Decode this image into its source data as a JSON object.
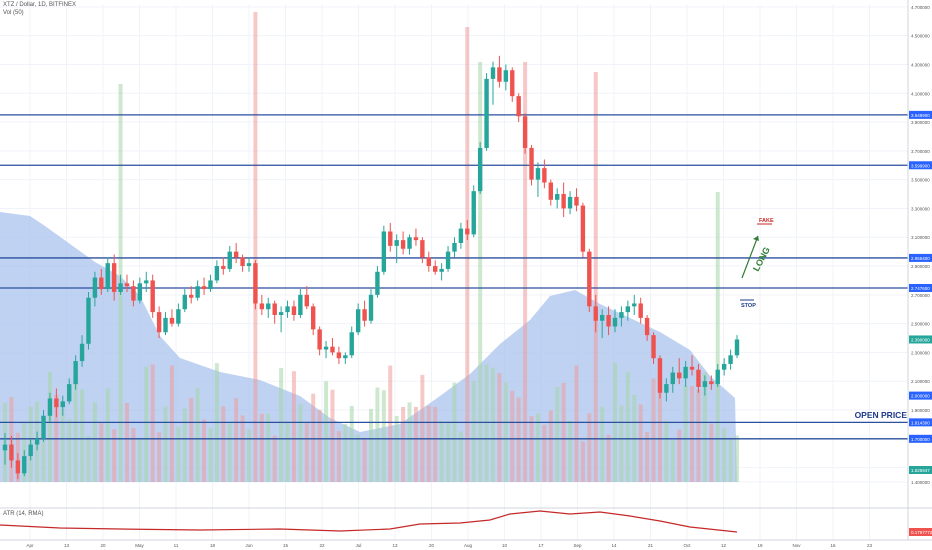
{
  "header": {
    "symbol_line": "XTZ / Dollar, 1D, BITFINEX",
    "volume_line": "Vol (50)",
    "atr_line": "ATR (14, RMA)"
  },
  "colors": {
    "up": "#26a69a",
    "down": "#ef5350",
    "level_line": "#2a4f9e",
    "volume_profile": "#a9c3ee",
    "atr": "#c62828",
    "label_bg": "#2962ff",
    "annotation_green": "#2e7d32",
    "annotation_blue": "#1e3a8a"
  },
  "annotations": {
    "fake": "FAKE",
    "long": "LONG",
    "stop": "STOP",
    "open_price": "OPEN PRICE"
  },
  "price_axis": {
    "ticks": [
      "4.700000",
      "4.500000",
      "4.300000",
      "4.100000",
      "3.900000",
      "3.700000",
      "3.500000",
      "3.300000",
      "3.100000",
      "2.900000",
      "2.700000",
      "2.500000",
      "2.300000",
      "2.100000",
      "1.900000",
      "1.700000",
      "1.500000",
      "1.400000"
    ],
    "level_labels": [
      "3.949900",
      "3.599900",
      "2.956400",
      "2.747600",
      "2.390000",
      "2.000000",
      "1.814300",
      "1.700000"
    ],
    "current_price_label": "2.390000",
    "volume_label": "1.625947",
    "atr_label": "0.1797772"
  },
  "levels": [
    3.9499,
    3.5999,
    2.9564,
    2.7476,
    1.8143,
    1.7
  ],
  "price_range": [
    1.4,
    4.72
  ],
  "time_axis": {
    "labels": [
      "Apr",
      "13",
      "20",
      "May",
      "11",
      "18",
      "Jun",
      "15",
      "22",
      "Jul",
      "13",
      "20",
      "Aug",
      "10",
      "17",
      "Sep",
      "14",
      "21",
      "Oct",
      "12",
      "19",
      "Nov",
      "16",
      "23"
    ]
  },
  "chart_data": {
    "type": "candlestick",
    "series": [
      {
        "x": 1,
        "open": 1.62,
        "high": 1.74,
        "low": 1.52,
        "close": 1.66
      },
      {
        "x": 2,
        "open": 1.66,
        "high": 1.72,
        "low": 1.5,
        "close": 1.55
      },
      {
        "x": 3,
        "open": 1.55,
        "high": 1.6,
        "low": 1.42,
        "close": 1.46
      },
      {
        "x": 4,
        "open": 1.46,
        "high": 1.62,
        "low": 1.44,
        "close": 1.58
      },
      {
        "x": 5,
        "open": 1.58,
        "high": 1.7,
        "low": 1.55,
        "close": 1.66
      },
      {
        "x": 6,
        "open": 1.66,
        "high": 1.75,
        "low": 1.62,
        "close": 1.7
      },
      {
        "x": 7,
        "open": 1.7,
        "high": 1.9,
        "low": 1.68,
        "close": 1.86
      },
      {
        "x": 8,
        "open": 1.86,
        "high": 2.02,
        "low": 1.82,
        "close": 1.98
      },
      {
        "x": 9,
        "open": 1.98,
        "high": 2.05,
        "low": 1.85,
        "close": 1.92
      },
      {
        "x": 10,
        "open": 1.92,
        "high": 2.0,
        "low": 1.86,
        "close": 1.96
      },
      {
        "x": 11,
        "open": 1.96,
        "high": 2.12,
        "low": 1.94,
        "close": 2.08
      },
      {
        "x": 12,
        "open": 2.08,
        "high": 2.28,
        "low": 2.04,
        "close": 2.24
      },
      {
        "x": 13,
        "open": 2.24,
        "high": 2.42,
        "low": 2.2,
        "close": 2.36
      },
      {
        "x": 14,
        "open": 2.36,
        "high": 2.72,
        "low": 2.32,
        "close": 2.68
      },
      {
        "x": 15,
        "open": 2.68,
        "high": 2.86,
        "low": 2.62,
        "close": 2.82
      },
      {
        "x": 16,
        "open": 2.82,
        "high": 2.88,
        "low": 2.7,
        "close": 2.74
      },
      {
        "x": 17,
        "open": 2.74,
        "high": 2.96,
        "low": 2.72,
        "close": 2.92
      },
      {
        "x": 18,
        "open": 2.92,
        "high": 2.98,
        "low": 2.66,
        "close": 2.72
      },
      {
        "x": 19,
        "open": 2.72,
        "high": 2.84,
        "low": 2.7,
        "close": 2.78
      },
      {
        "x": 20,
        "open": 2.78,
        "high": 2.84,
        "low": 2.72,
        "close": 2.76
      },
      {
        "x": 21,
        "open": 2.76,
        "high": 2.8,
        "low": 2.62,
        "close": 2.66
      },
      {
        "x": 22,
        "open": 2.66,
        "high": 2.82,
        "low": 2.64,
        "close": 2.78
      },
      {
        "x": 23,
        "open": 2.78,
        "high": 2.86,
        "low": 2.72,
        "close": 2.8
      },
      {
        "x": 24,
        "open": 2.8,
        "high": 2.84,
        "low": 2.54,
        "close": 2.58
      },
      {
        "x": 25,
        "open": 2.58,
        "high": 2.62,
        "low": 2.4,
        "close": 2.44
      },
      {
        "x": 26,
        "open": 2.44,
        "high": 2.58,
        "low": 2.42,
        "close": 2.54
      },
      {
        "x": 27,
        "open": 2.54,
        "high": 2.6,
        "low": 2.48,
        "close": 2.5
      },
      {
        "x": 28,
        "open": 2.5,
        "high": 2.64,
        "low": 2.48,
        "close": 2.6
      },
      {
        "x": 29,
        "open": 2.6,
        "high": 2.74,
        "low": 2.58,
        "close": 2.7
      },
      {
        "x": 30,
        "open": 2.7,
        "high": 2.76,
        "low": 2.64,
        "close": 2.68
      },
      {
        "x": 31,
        "open": 2.68,
        "high": 2.8,
        "low": 2.66,
        "close": 2.76
      },
      {
        "x": 32,
        "open": 2.76,
        "high": 2.82,
        "low": 2.7,
        "close": 2.74
      },
      {
        "x": 33,
        "open": 2.74,
        "high": 2.84,
        "low": 2.72,
        "close": 2.8
      },
      {
        "x": 34,
        "open": 2.8,
        "high": 2.94,
        "low": 2.78,
        "close": 2.9
      },
      {
        "x": 35,
        "open": 2.9,
        "high": 2.96,
        "low": 2.84,
        "close": 2.88
      },
      {
        "x": 36,
        "open": 2.88,
        "high": 3.04,
        "low": 2.86,
        "close": 3.0
      },
      {
        "x": 37,
        "open": 3.0,
        "high": 3.06,
        "low": 2.92,
        "close": 2.96
      },
      {
        "x": 38,
        "open": 2.96,
        "high": 2.98,
        "low": 2.86,
        "close": 2.9
      },
      {
        "x": 39,
        "open": 2.9,
        "high": 2.96,
        "low": 2.86,
        "close": 2.92
      },
      {
        "x": 40,
        "open": 2.92,
        "high": 2.94,
        "low": 2.6,
        "close": 2.64
      },
      {
        "x": 41,
        "open": 2.64,
        "high": 2.7,
        "low": 2.56,
        "close": 2.6
      },
      {
        "x": 42,
        "open": 2.6,
        "high": 2.68,
        "low": 2.54,
        "close": 2.64
      },
      {
        "x": 43,
        "open": 2.64,
        "high": 2.66,
        "low": 2.5,
        "close": 2.56
      },
      {
        "x": 44,
        "open": 2.56,
        "high": 2.62,
        "low": 2.44,
        "close": 2.58
      },
      {
        "x": 45,
        "open": 2.58,
        "high": 2.66,
        "low": 2.54,
        "close": 2.62
      },
      {
        "x": 46,
        "open": 2.62,
        "high": 2.66,
        "low": 2.52,
        "close": 2.56
      },
      {
        "x": 47,
        "open": 2.56,
        "high": 2.74,
        "low": 2.54,
        "close": 2.7
      },
      {
        "x": 48,
        "open": 2.7,
        "high": 2.76,
        "low": 2.6,
        "close": 2.62
      },
      {
        "x": 49,
        "open": 2.62,
        "high": 2.64,
        "low": 2.42,
        "close": 2.46
      },
      {
        "x": 50,
        "open": 2.46,
        "high": 2.48,
        "low": 2.28,
        "close": 2.32
      },
      {
        "x": 51,
        "open": 2.32,
        "high": 2.38,
        "low": 2.26,
        "close": 2.34
      },
      {
        "x": 52,
        "open": 2.34,
        "high": 2.4,
        "low": 2.28,
        "close": 2.3
      },
      {
        "x": 53,
        "open": 2.3,
        "high": 2.34,
        "low": 2.22,
        "close": 2.26
      },
      {
        "x": 54,
        "open": 2.26,
        "high": 2.3,
        "low": 2.22,
        "close": 2.28
      },
      {
        "x": 55,
        "open": 2.28,
        "high": 2.48,
        "low": 2.26,
        "close": 2.44
      },
      {
        "x": 56,
        "open": 2.44,
        "high": 2.64,
        "low": 2.42,
        "close": 2.6
      },
      {
        "x": 57,
        "open": 2.6,
        "high": 2.66,
        "low": 2.48,
        "close": 2.52
      },
      {
        "x": 58,
        "open": 2.52,
        "high": 2.74,
        "low": 2.5,
        "close": 2.7
      },
      {
        "x": 59,
        "open": 2.7,
        "high": 2.9,
        "low": 2.68,
        "close": 2.86
      },
      {
        "x": 60,
        "open": 2.86,
        "high": 3.18,
        "low": 2.84,
        "close": 3.14
      },
      {
        "x": 61,
        "open": 3.14,
        "high": 3.2,
        "low": 3.0,
        "close": 3.04
      },
      {
        "x": 62,
        "open": 3.04,
        "high": 3.12,
        "low": 2.92,
        "close": 3.08
      },
      {
        "x": 63,
        "open": 3.08,
        "high": 3.14,
        "low": 2.98,
        "close": 3.02
      },
      {
        "x": 64,
        "open": 3.02,
        "high": 3.12,
        "low": 2.98,
        "close": 3.1
      },
      {
        "x": 65,
        "open": 3.1,
        "high": 3.16,
        "low": 3.04,
        "close": 3.08
      },
      {
        "x": 66,
        "open": 3.08,
        "high": 3.1,
        "low": 2.92,
        "close": 2.96
      },
      {
        "x": 67,
        "open": 2.96,
        "high": 3.0,
        "low": 2.86,
        "close": 2.9
      },
      {
        "x": 68,
        "open": 2.9,
        "high": 2.94,
        "low": 2.84,
        "close": 2.86
      },
      {
        "x": 69,
        "open": 2.86,
        "high": 2.92,
        "low": 2.8,
        "close": 2.88
      },
      {
        "x": 70,
        "open": 2.88,
        "high": 3.04,
        "low": 2.86,
        "close": 3.0
      },
      {
        "x": 71,
        "open": 3.0,
        "high": 3.1,
        "low": 2.96,
        "close": 3.06
      },
      {
        "x": 72,
        "open": 3.06,
        "high": 3.2,
        "low": 3.02,
        "close": 3.16
      },
      {
        "x": 73,
        "open": 3.16,
        "high": 3.22,
        "low": 3.08,
        "close": 3.12
      },
      {
        "x": 74,
        "open": 3.12,
        "high": 3.46,
        "low": 3.1,
        "close": 3.42
      },
      {
        "x": 75,
        "open": 3.42,
        "high": 3.76,
        "low": 3.4,
        "close": 3.72
      },
      {
        "x": 76,
        "open": 3.72,
        "high": 4.24,
        "low": 3.7,
        "close": 4.2
      },
      {
        "x": 77,
        "open": 4.2,
        "high": 4.32,
        "low": 4.02,
        "close": 4.28
      },
      {
        "x": 78,
        "open": 4.28,
        "high": 4.36,
        "low": 4.14,
        "close": 4.18
      },
      {
        "x": 79,
        "open": 4.18,
        "high": 4.3,
        "low": 4.12,
        "close": 4.26
      },
      {
        "x": 80,
        "open": 4.26,
        "high": 4.28,
        "low": 4.04,
        "close": 4.08
      },
      {
        "x": 81,
        "open": 4.08,
        "high": 4.1,
        "low": 3.9,
        "close": 3.94
      },
      {
        "x": 82,
        "open": 3.94,
        "high": 3.96,
        "low": 3.68,
        "close": 3.72
      },
      {
        "x": 83,
        "open": 3.72,
        "high": 3.74,
        "low": 3.46,
        "close": 3.5
      },
      {
        "x": 84,
        "open": 3.5,
        "high": 3.62,
        "low": 3.38,
        "close": 3.58
      },
      {
        "x": 85,
        "open": 3.58,
        "high": 3.64,
        "low": 3.44,
        "close": 3.48
      },
      {
        "x": 86,
        "open": 3.48,
        "high": 3.5,
        "low": 3.32,
        "close": 3.36
      },
      {
        "x": 87,
        "open": 3.36,
        "high": 3.44,
        "low": 3.3,
        "close": 3.4
      },
      {
        "x": 88,
        "open": 3.4,
        "high": 3.48,
        "low": 3.24,
        "close": 3.3
      },
      {
        "x": 89,
        "open": 3.3,
        "high": 3.42,
        "low": 3.26,
        "close": 3.38
      },
      {
        "x": 90,
        "open": 3.38,
        "high": 3.44,
        "low": 3.28,
        "close": 3.32
      },
      {
        "x": 91,
        "open": 3.32,
        "high": 3.34,
        "low": 2.96,
        "close": 3.0
      },
      {
        "x": 92,
        "open": 3.0,
        "high": 3.02,
        "low": 2.58,
        "close": 2.62
      },
      {
        "x": 93,
        "open": 2.62,
        "high": 2.7,
        "low": 2.44,
        "close": 2.52
      },
      {
        "x": 94,
        "open": 2.52,
        "high": 2.6,
        "low": 2.4,
        "close": 2.56
      },
      {
        "x": 95,
        "open": 2.56,
        "high": 2.62,
        "low": 2.42,
        "close": 2.48
      },
      {
        "x": 96,
        "open": 2.48,
        "high": 2.6,
        "low": 2.44,
        "close": 2.54
      },
      {
        "x": 97,
        "open": 2.54,
        "high": 2.62,
        "low": 2.48,
        "close": 2.58
      },
      {
        "x": 98,
        "open": 2.58,
        "high": 2.66,
        "low": 2.52,
        "close": 2.62
      },
      {
        "x": 99,
        "open": 2.62,
        "high": 2.7,
        "low": 2.56,
        "close": 2.64
      },
      {
        "x": 100,
        "open": 2.64,
        "high": 2.68,
        "low": 2.5,
        "close": 2.54
      },
      {
        "x": 101,
        "open": 2.54,
        "high": 2.56,
        "low": 2.38,
        "close": 2.42
      },
      {
        "x": 102,
        "open": 2.42,
        "high": 2.44,
        "low": 2.22,
        "close": 2.26
      },
      {
        "x": 103,
        "open": 2.26,
        "high": 2.28,
        "low": 1.98,
        "close": 2.02
      },
      {
        "x": 104,
        "open": 2.02,
        "high": 2.12,
        "low": 1.96,
        "close": 2.08
      },
      {
        "x": 105,
        "open": 2.08,
        "high": 2.2,
        "low": 2.02,
        "close": 2.16
      },
      {
        "x": 106,
        "open": 2.16,
        "high": 2.26,
        "low": 2.08,
        "close": 2.12
      },
      {
        "x": 107,
        "open": 2.12,
        "high": 2.24,
        "low": 2.06,
        "close": 2.2
      },
      {
        "x": 108,
        "open": 2.2,
        "high": 2.28,
        "low": 2.14,
        "close": 2.18
      },
      {
        "x": 109,
        "open": 2.18,
        "high": 2.22,
        "low": 2.02,
        "close": 2.06
      },
      {
        "x": 110,
        "open": 2.06,
        "high": 2.14,
        "low": 2.0,
        "close": 2.1
      },
      {
        "x": 111,
        "open": 2.1,
        "high": 2.14,
        "low": 2.04,
        "close": 2.08
      },
      {
        "x": 112,
        "open": 2.08,
        "high": 2.22,
        "low": 2.06,
        "close": 2.18
      },
      {
        "x": 113,
        "open": 2.18,
        "high": 2.26,
        "low": 2.14,
        "close": 2.22
      },
      {
        "x": 114,
        "open": 2.22,
        "high": 2.32,
        "low": 2.18,
        "close": 2.28
      },
      {
        "x": 115,
        "open": 2.28,
        "high": 2.42,
        "low": 2.26,
        "close": 2.39
      }
    ]
  }
}
